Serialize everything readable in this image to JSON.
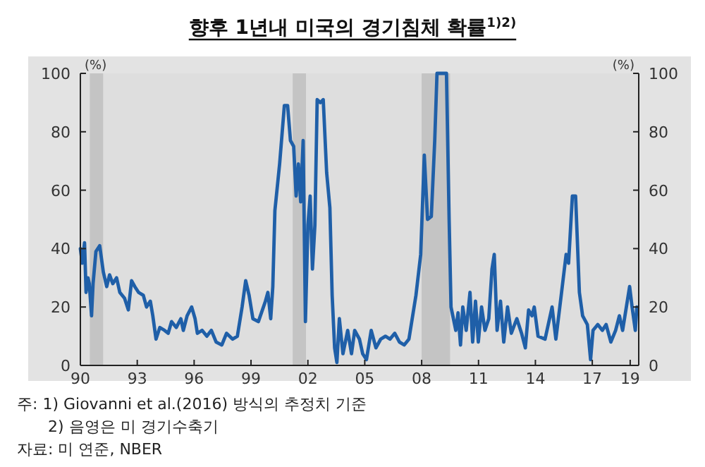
{
  "chart_data": {
    "type": "line",
    "title": "향후 1년내 미국의 경기침체 확률$^{1)2)}$",
    "ylabel": "(%)",
    "y2label": "(%)",
    "xlim": [
      1990,
      2019.45
    ],
    "xticks": [
      {
        "value": 1990,
        "label": "90"
      },
      {
        "value": 1993,
        "label": "93"
      },
      {
        "value": 1996,
        "label": "96"
      },
      {
        "value": 1999,
        "label": "99"
      },
      {
        "value": 2002,
        "label": "02"
      },
      {
        "value": 2005,
        "label": "05"
      },
      {
        "value": 2008,
        "label": "08"
      },
      {
        "value": 2011,
        "label": "11"
      },
      {
        "value": 2014,
        "label": "14"
      },
      {
        "value": 2017,
        "label": "17"
      },
      {
        "value": 2019,
        "label": "19"
      }
    ],
    "ylim": [
      0,
      100
    ],
    "yticks": [
      0,
      20,
      40,
      60,
      80,
      100
    ],
    "y2lim": [
      0,
      100
    ],
    "y2ticks": [
      0,
      20,
      40,
      60,
      80,
      100
    ],
    "bands": [
      {
        "axis": "x",
        "from": 1990.5,
        "to": 1991.2,
        "color": "#c4c4c4"
      },
      {
        "axis": "x",
        "from": 2001.2,
        "to": 2001.9,
        "color": "#c4c4c4"
      },
      {
        "axis": "x",
        "from": 2008.0,
        "to": 2009.5,
        "color": "#c4c4c4"
      }
    ],
    "series": [
      {
        "color": "#1f5fa8",
        "x": [
          1990,
          1990.1,
          1990.22,
          1990.3,
          1990.4,
          1990.47,
          1990.59,
          1990.67,
          1990.82,
          1991.02,
          1991.21,
          1991.39,
          1991.54,
          1991.71,
          1991.91,
          1992.08,
          1992.33,
          1992.53,
          1992.7,
          1992.87,
          1993.07,
          1993.32,
          1993.49,
          1993.69,
          1993.82,
          1993.99,
          1994.19,
          1994.44,
          1994.63,
          1994.81,
          1995.06,
          1995.3,
          1995.43,
          1995.63,
          1995.87,
          1996.05,
          1996.17,
          1996.42,
          1996.67,
          1996.91,
          1997.16,
          1997.46,
          1997.71,
          1998.03,
          1998.28,
          1998.53,
          1998.72,
          1998.9,
          1999.1,
          1999.39,
          1999.76,
          1999.89,
          2000.04,
          2000.15,
          2000.26,
          2000.51,
          2000.76,
          2000.93,
          2001.08,
          2001.25,
          2001.38,
          2001.5,
          2001.62,
          2001.75,
          2001.87,
          2002,
          2002.12,
          2002.24,
          2002.37,
          2002.49,
          2002.66,
          2002.81,
          2002.99,
          2003.16,
          2003.28,
          2003.41,
          2003.53,
          2003.66,
          2003.85,
          2004.1,
          2004.3,
          2004.47,
          2004.72,
          2004.89,
          2005.09,
          2005.34,
          2005.59,
          2005.84,
          2006.09,
          2006.33,
          2006.58,
          2006.83,
          2007.08,
          2007.33,
          2007.7,
          2007.95,
          2008.14,
          2008.31,
          2008.51,
          2008.69,
          2008.81,
          2009.31,
          2009.45,
          2009.55,
          2009.8,
          2009.92,
          2010.05,
          2010.17,
          2010.35,
          2010.55,
          2010.69,
          2010.84,
          2010.99,
          2011.16,
          2011.34,
          2011.54,
          2011.71,
          2011.83,
          2011.98,
          2012.16,
          2012.33,
          2012.53,
          2012.73,
          2013.02,
          2013.27,
          2013.47,
          2013.64,
          2013.82,
          2013.94,
          2014.14,
          2014.51,
          2014.88,
          2015.08,
          2015.38,
          2015.62,
          2015.75,
          2015.95,
          2016.12,
          2016.32,
          2016.49,
          2016.74,
          2016.91,
          2017.04,
          2017.29,
          2017.53,
          2017.73,
          2017.98,
          2018.23,
          2018.43,
          2018.6,
          2018.97,
          2019.1,
          2019.27,
          2019.35
        ],
        "values": [
          40,
          35,
          42,
          25,
          30,
          28,
          17,
          28,
          39,
          41,
          32,
          27,
          31,
          28,
          30,
          25,
          23,
          19,
          29,
          27,
          25,
          24,
          20,
          22,
          17,
          9,
          13,
          12,
          11,
          15,
          13,
          16,
          12,
          17,
          20,
          16,
          11,
          12,
          10,
          12,
          8,
          7,
          11,
          9,
          10,
          20,
          29,
          24,
          16,
          15,
          22,
          25,
          16,
          27,
          53,
          69,
          89,
          89,
          77,
          75,
          58,
          69,
          56,
          77,
          15,
          48,
          58,
          33,
          48,
          91,
          90,
          91,
          66,
          54,
          24,
          6,
          1,
          16,
          4,
          12,
          4,
          12,
          9,
          4,
          2,
          12,
          6,
          9,
          10,
          9,
          11,
          8,
          7,
          9,
          24,
          38,
          72,
          50,
          51,
          77,
          100,
          100,
          50,
          20,
          12,
          18,
          7,
          20,
          12,
          25,
          8,
          22,
          8,
          20,
          12,
          16,
          33,
          38,
          12,
          22,
          8,
          20,
          11,
          16,
          11,
          6,
          19,
          17,
          20,
          10,
          9,
          20,
          9,
          25,
          38,
          35,
          58,
          58,
          25,
          17,
          14,
          2,
          12,
          14,
          12,
          14,
          8,
          12,
          17,
          12,
          27,
          20,
          12,
          20
        ]
      }
    ],
    "annotations": [
      "주: 1) Giovanni et al.(2016) 방식의 추정치 기준",
      "2) 음영은 미 경기수축기",
      "자료: 미 연준, NBER"
    ]
  }
}
